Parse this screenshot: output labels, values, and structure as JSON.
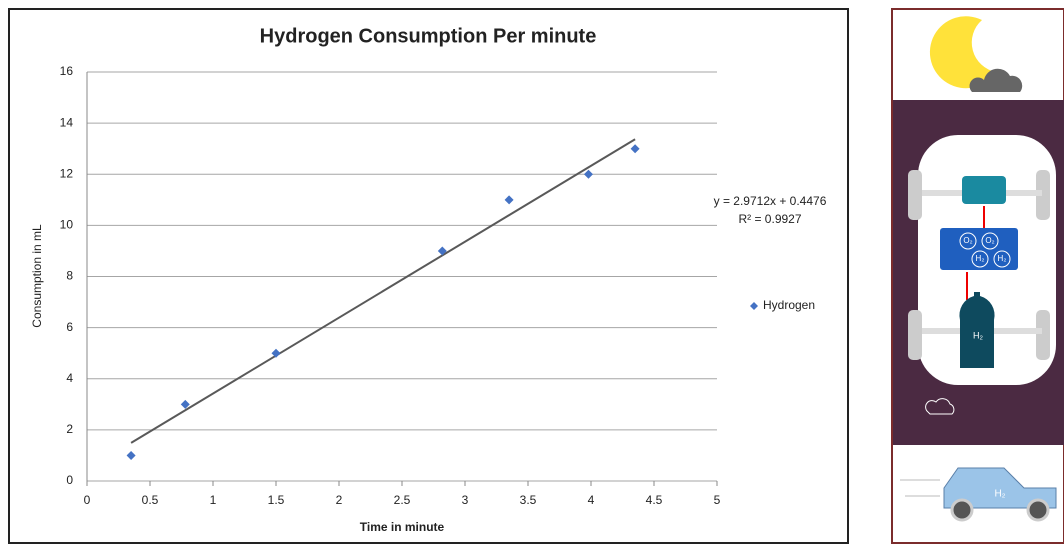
{
  "chart_data": {
    "type": "scatter",
    "title": "Hydrogen Consumption Per minute",
    "x_label": "Time in minute",
    "y_label": "Consumption in mL",
    "series": [
      {
        "name": "Hydrogen",
        "color": "#4472c4",
        "x": [
          0.35,
          0.78,
          1.5,
          2.82,
          3.35,
          3.98,
          4.35
        ],
        "values": [
          1,
          3,
          5,
          9,
          11,
          12,
          13
        ]
      }
    ],
    "trendline": {
      "x": [
        0.35,
        4.35
      ],
      "values": [
        1.49,
        13.37
      ],
      "color": "#595959"
    },
    "annotations": [
      "y = 2.9712x + 0.4476",
      "R² = 0.9927"
    ],
    "xlim": [
      0,
      5
    ],
    "xticks": [
      0,
      0.5,
      1,
      1.5,
      2,
      2.5,
      3,
      3.5,
      4,
      4.5,
      5
    ],
    "ylim": [
      0,
      16
    ],
    "yticks": [
      0,
      2,
      4,
      6,
      8,
      10,
      12,
      14,
      16
    ],
    "grid": true,
    "legend": "right"
  },
  "illustration": {
    "labels": [
      "O₂",
      "O₂",
      "H₂",
      "H₂",
      "H₂",
      "H₂"
    ]
  }
}
